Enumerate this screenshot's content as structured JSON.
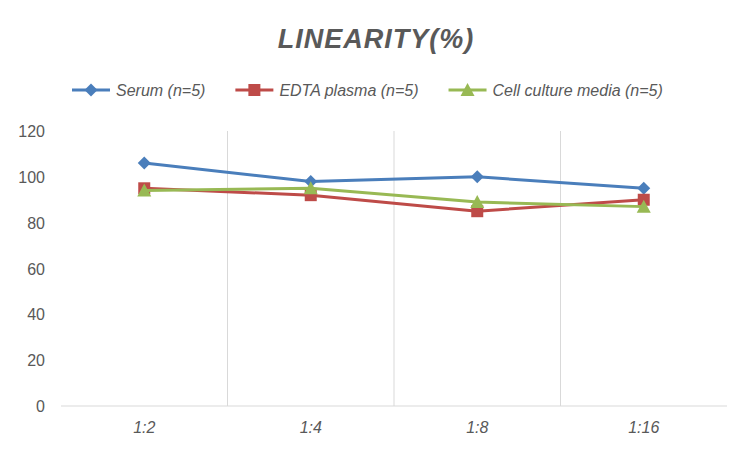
{
  "chart_data": {
    "type": "line",
    "title": "LINEARITY(%)",
    "categories": [
      "1:2",
      "1:4",
      "1:8",
      "1:16"
    ],
    "series": [
      {
        "name": "Serum (n=5)",
        "color": "#4a7ebb",
        "marker": "diamond",
        "values": [
          106,
          98,
          100,
          95
        ]
      },
      {
        "name": "EDTA plasma (n=5)",
        "color": "#be4b48",
        "marker": "square",
        "values": [
          95,
          92,
          85,
          90
        ]
      },
      {
        "name": "Cell culture media (n=5)",
        "color": "#98b954",
        "marker": "triangle",
        "values": [
          94,
          95,
          89,
          87
        ]
      }
    ],
    "ylim": [
      0,
      120
    ],
    "yticks": [
      0,
      20,
      40,
      60,
      80,
      100,
      120
    ],
    "grid": true,
    "legend": "top"
  }
}
